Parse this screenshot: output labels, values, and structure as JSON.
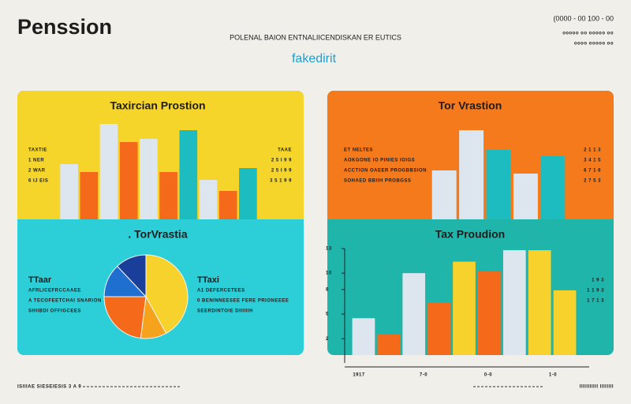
{
  "header": {
    "title": "Penssion",
    "subtitle": "POLENAL BAION ENTNALIICENDISKAN ER EUTICS",
    "tagline": "fakedirit",
    "code": "(0000 - 00 100 - 00",
    "meta": [
      "ooooo oo ooooo oo",
      "oooo ooooo oo"
    ]
  },
  "chart_data": [
    {
      "type": "bar",
      "title": "Taxircian Prostion",
      "values": [
        70,
        60,
        121,
        98,
        102,
        60,
        113,
        50,
        36,
        65
      ],
      "colors": [
        "#dde6ee",
        "#f56a1a",
        "#dde6ee",
        "#f56a1a",
        "#dde6ee",
        "#f56a1a",
        "#1cbcc0",
        "#dde6ee",
        "#f56a1a",
        "#1cbcc0"
      ],
      "ylim": [
        0,
        130
      ],
      "annotations_left": [
        "TAXTIE",
        "1 NER",
        "2 WAR",
        "6 IJ EIS"
      ],
      "annotations_right": [
        "TAAE",
        "2 5 I 9 9",
        "2 5 I 9 9",
        "3 5 1 9 9"
      ]
    },
    {
      "type": "bar",
      "title": "Tor Vrastion",
      "values": [
        62,
        113,
        88,
        58,
        80
      ],
      "colors": [
        "#dde6ee",
        "#dde6ee",
        "#1cbcc0",
        "#dde6ee",
        "#1cbcc0"
      ],
      "ylim": [
        0,
        130
      ],
      "annotations_left": [
        "ET NELTES",
        "AOKGONE IO PINIES IOIGS",
        "ACCTION OAEER PROGBBSION",
        "SOHAED BBIIH PROBGSS"
      ],
      "annotations_right": [
        "2 1 1 3",
        "3 4 1 5",
        "6 7 1 6",
        "2 7 5 3"
      ]
    },
    {
      "type": "pie",
      "title": ". TorVrastia",
      "values": [
        42,
        10,
        23,
        13,
        12
      ],
      "colors": [
        "#f7d12c",
        "#f5a21c",
        "#f56a1a",
        "#1f6fd0",
        "#1a3f9a"
      ],
      "annotations_left": [
        "TTaar",
        "AFRLICEFRCCAAEE",
        "A TECOFEETCHAI SNARION",
        "SHIIBDI OFFIGCEES"
      ],
      "annotations_right": [
        "TTaxi",
        "A1 DEFERCETEES",
        "0 BENINNEESEE FERE PRIONEEEE",
        "SEERDINTOIE DIIIIIIH"
      ]
    },
    {
      "type": "bar",
      "title": "Tax Proudion",
      "values": [
        4.5,
        2.5,
        10,
        6.4,
        11.4,
        10.2,
        12.8,
        12.8,
        7.9
      ],
      "colors": [
        "#dde6ee",
        "#f56a1a",
        "#dde6ee",
        "#f56a1a",
        "#f7d12c",
        "#f56a1a",
        "#dde6ee",
        "#f7d12c",
        "#f7d12c"
      ],
      "ylim": [
        0,
        13
      ],
      "yticks": [
        2,
        5,
        8,
        10,
        13
      ],
      "xlabels": [
        "1917",
        "7-0",
        "0-0",
        "1-0"
      ],
      "annotations_left": [],
      "annotations_right": [
        "1 9 3",
        "1 1 9 3",
        "1 7 1 3"
      ]
    }
  ],
  "footer": {
    "left": "ISIIIAE SIESEIESIS 3 A 9",
    "right": "IIIIIIIIIII IIIIIIII"
  }
}
